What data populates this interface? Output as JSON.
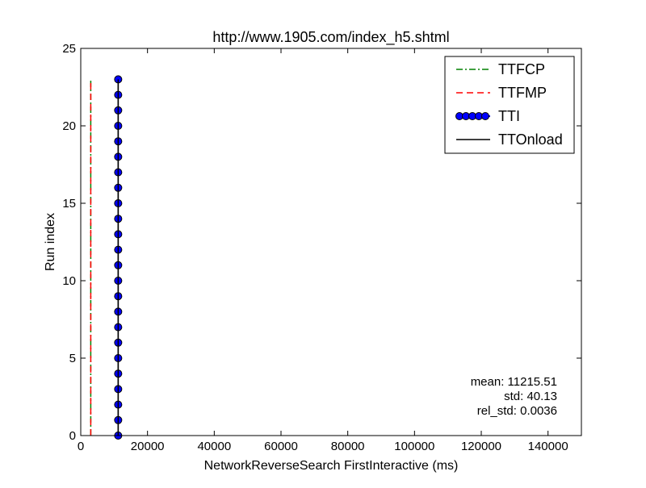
{
  "chart_data": {
    "type": "line",
    "title": "http://www.1905.com/index_h5.shtml",
    "xlabel": "NetworkReverseSearch FirstInteractive (ms)",
    "ylabel": "Run index",
    "xlim": [
      0,
      150000
    ],
    "ylim": [
      0,
      25
    ],
    "x_ticks": [
      0,
      20000,
      40000,
      60000,
      80000,
      100000,
      120000,
      140000
    ],
    "y_ticks": [
      0,
      5,
      10,
      15,
      20,
      25
    ],
    "x_tick_labels": [
      "0",
      "20000",
      "40000",
      "60000",
      "80000",
      "100000",
      "120000",
      "140000"
    ],
    "y_tick_labels": [
      "0",
      "5",
      "10",
      "15",
      "20",
      "25"
    ],
    "grid": false,
    "legend_position": "top-right",
    "series": [
      {
        "name": "TTFCP",
        "style": "dashdot",
        "color": "#008000",
        "x": [
          3000,
          3000,
          3000,
          3000,
          3000,
          3000,
          3000,
          3000,
          3000,
          3000,
          3000,
          3000,
          3000,
          3000,
          3000,
          3000,
          3000,
          3000,
          3000,
          3000,
          3000,
          3000,
          3000,
          3000
        ],
        "y": [
          0,
          1,
          2,
          3,
          4,
          5,
          6,
          7,
          8,
          9,
          10,
          11,
          12,
          13,
          14,
          15,
          16,
          17,
          18,
          19,
          20,
          21,
          22,
          23
        ]
      },
      {
        "name": "TTFMP",
        "style": "dashed",
        "color": "#ff0000",
        "x": [
          3000,
          3000,
          3000,
          3000,
          3000,
          3000,
          3000,
          3000,
          3000,
          3000,
          3000,
          3000,
          3000,
          3000,
          3000,
          3000,
          3000,
          3000,
          3000,
          3000,
          3000,
          3000,
          3000,
          3000
        ],
        "y": [
          0,
          1,
          2,
          3,
          4,
          5,
          6,
          7,
          8,
          9,
          10,
          11,
          12,
          13,
          14,
          15,
          16,
          17,
          18,
          19,
          20,
          21,
          22,
          23
        ]
      },
      {
        "name": "TTI",
        "style": "solid-markers",
        "color": "#0000ff",
        "x": [
          11215,
          11215,
          11215,
          11215,
          11215,
          11215,
          11215,
          11215,
          11215,
          11215,
          11215,
          11215,
          11215,
          11215,
          11215,
          11215,
          11215,
          11215,
          11215,
          11215,
          11215,
          11215,
          11215,
          11215
        ],
        "y": [
          0,
          1,
          2,
          3,
          4,
          5,
          6,
          7,
          8,
          9,
          10,
          11,
          12,
          13,
          14,
          15,
          16,
          17,
          18,
          19,
          20,
          21,
          22,
          23
        ]
      },
      {
        "name": "TTOnload",
        "style": "solid",
        "color": "#000000",
        "x": [
          11215,
          11215,
          11215,
          11215,
          11215,
          11215,
          11215,
          11215,
          11215,
          11215,
          11215,
          11215,
          11215,
          11215,
          11215,
          11215,
          11215,
          11215,
          11215,
          11215,
          11215,
          11215,
          11215,
          11215
        ],
        "y": [
          0,
          1,
          2,
          3,
          4,
          5,
          6,
          7,
          8,
          9,
          10,
          11,
          12,
          13,
          14,
          15,
          16,
          17,
          18,
          19,
          20,
          21,
          22,
          23
        ]
      }
    ],
    "annotations": [
      "mean: 11215.51",
      "std: 40.13",
      "rel_std: 0.0036"
    ]
  }
}
